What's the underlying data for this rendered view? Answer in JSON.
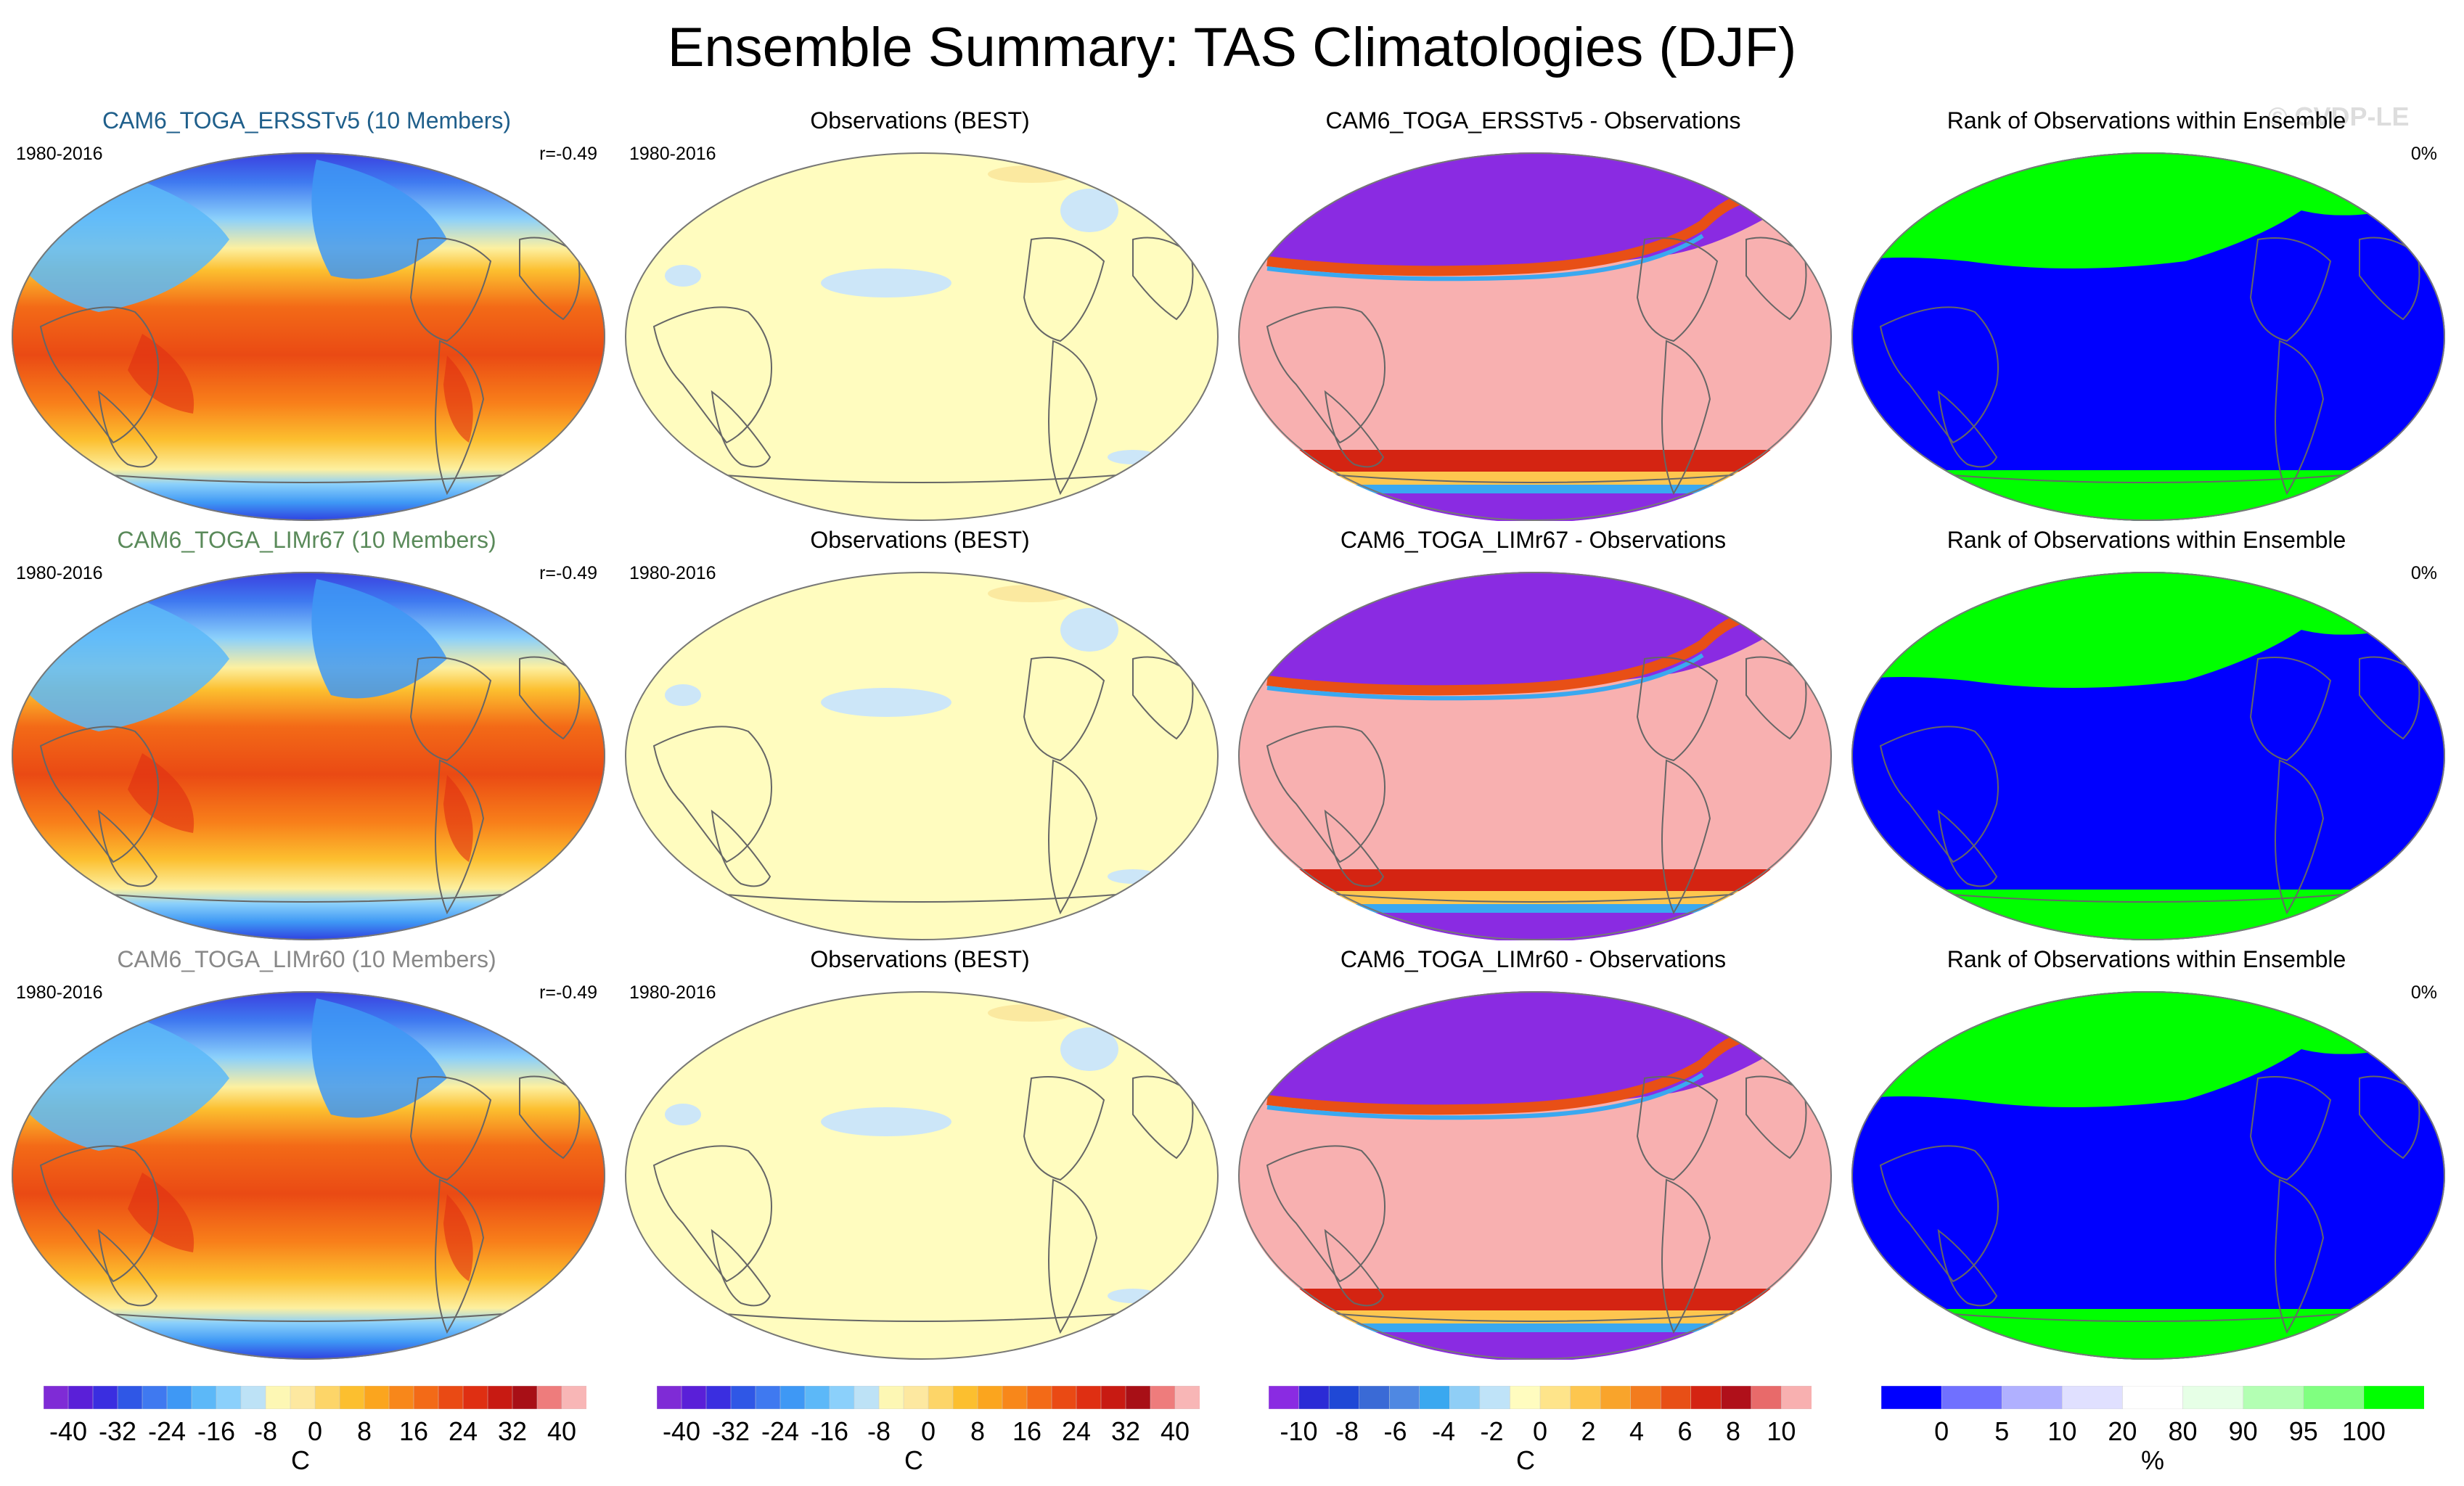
{
  "title": "Ensemble Summary: TAS Climatologies (DJF)",
  "copyright": "© CVDP-LE",
  "colors": {
    "model_title_colors": [
      "#1f5f8b",
      "#5a8a5a",
      "#888888"
    ],
    "temp_scale": [
      "#7f2bd6",
      "#5a1fd8",
      "#3a2ee0",
      "#2f57e6",
      "#3f79f0",
      "#3e98f5",
      "#5cb8f8",
      "#8bd0fb",
      "#bde2f6",
      "#fdf7b4",
      "#fde8a0",
      "#fdd568",
      "#fcbf2f",
      "#fba51e",
      "#f8871a",
      "#f36a17",
      "#ea4a14",
      "#df2f12",
      "#c81a12",
      "#a80f16",
      "#ee7c7c",
      "#f8b6b6"
    ],
    "diff_scale": [
      "#8a2be2",
      "#2b2bd6",
      "#1f48d6",
      "#3a6ad6",
      "#4f88e2",
      "#3aa8f0",
      "#8fcef6",
      "#bfe3f8",
      "#fffcbf",
      "#fee48a",
      "#fdc64f",
      "#f9a42b",
      "#f37c1e",
      "#e84f16",
      "#d42412",
      "#b0101a",
      "#e86a6a",
      "#f8b0b0"
    ],
    "rank_scale": [
      "#0000ff",
      "#7070ff",
      "#b0b0ff",
      "#e0e0ff",
      "#ffffff",
      "#e6ffe6",
      "#b3ffb3",
      "#80ff80",
      "#00ff00"
    ]
  },
  "rows": [
    {
      "model": {
        "title": "CAM6_TOGA_ERSSTv5 (10 Members)",
        "period": "1980-2016",
        "corr": "r=-0.49"
      },
      "obs": {
        "title": "Observations (BEST)",
        "period": "1980-2016"
      },
      "diff": {
        "title": "CAM6_TOGA_ERSSTv5 - Observations"
      },
      "rank": {
        "title": "Rank of Observations within Ensemble",
        "pct": "0%"
      }
    },
    {
      "model": {
        "title": "CAM6_TOGA_LIMr67 (10 Members)",
        "period": "1980-2016",
        "corr": "r=-0.49"
      },
      "obs": {
        "title": "Observations (BEST)",
        "period": "1980-2016"
      },
      "diff": {
        "title": "CAM6_TOGA_LIMr67 - Observations"
      },
      "rank": {
        "title": "Rank of Observations within Ensemble",
        "pct": "0%"
      }
    },
    {
      "model": {
        "title": "CAM6_TOGA_LIMr60 (10 Members)",
        "period": "1980-2016",
        "corr": "r=-0.49"
      },
      "obs": {
        "title": "Observations (BEST)",
        "period": "1980-2016"
      },
      "diff": {
        "title": "CAM6_TOGA_LIMr60 - Observations"
      },
      "rank": {
        "title": "Rank of Observations within Ensemble",
        "pct": "0%"
      }
    }
  ],
  "colorbars": [
    {
      "labels": [
        "-40",
        "-32",
        "-24",
        "-16",
        "-8",
        "0",
        "8",
        "16",
        "24",
        "32",
        "40"
      ],
      "unit": "C"
    },
    {
      "labels": [
        "-40",
        "-32",
        "-24",
        "-16",
        "-8",
        "0",
        "8",
        "16",
        "24",
        "32",
        "40"
      ],
      "unit": "C"
    },
    {
      "labels": [
        "-10",
        "-8",
        "-6",
        "-4",
        "-2",
        "0",
        "2",
        "4",
        "6",
        "8",
        "10"
      ],
      "unit": "C"
    },
    {
      "labels": [
        "0",
        "5",
        "10",
        "20",
        "80",
        "90",
        "95",
        "100"
      ],
      "unit": "%"
    }
  ]
}
